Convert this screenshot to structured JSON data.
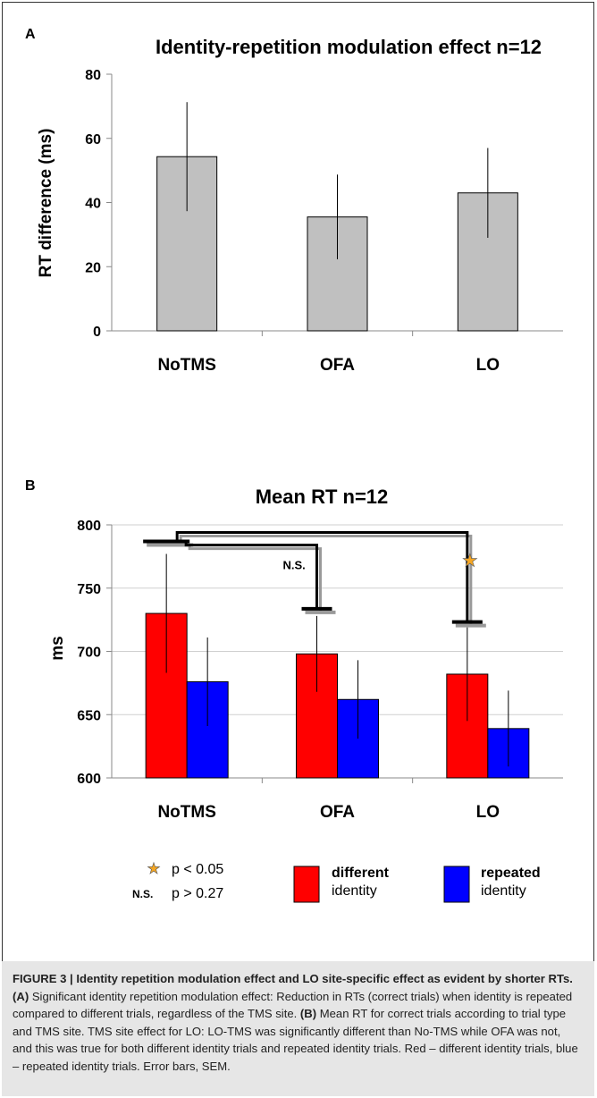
{
  "chart_data": [
    {
      "panel": "A",
      "type": "bar",
      "title": "Identity-repetition modulation effect  n=12",
      "ylabel": "RT difference (ms)",
      "xlabel": "",
      "ylim": [
        0,
        80
      ],
      "yticks": [
        0,
        20,
        40,
        60,
        80
      ],
      "grid": false,
      "categories": [
        "NoTMS",
        "OFA",
        "LO"
      ],
      "series": [
        {
          "values": [
            54.3,
            35.5,
            43.0
          ],
          "error": [
            17.0,
            13.2,
            14.0
          ],
          "color": "#c0c0c0"
        }
      ]
    },
    {
      "panel": "B",
      "type": "bar",
      "title": "Mean RT  n=12",
      "ylabel": "ms",
      "xlabel": "",
      "ylim": [
        600,
        800
      ],
      "yticks": [
        600,
        650,
        700,
        750,
        800
      ],
      "grid": true,
      "categories": [
        "NoTMS",
        "OFA",
        "LO"
      ],
      "series": [
        {
          "name": "different identity",
          "values": [
            730,
            698,
            682
          ],
          "error": [
            47,
            30,
            37
          ],
          "color": "#ff0000"
        },
        {
          "name": "repeated identity",
          "values": [
            676,
            662,
            639
          ],
          "error": [
            35,
            31,
            30
          ],
          "color": "#0000ff"
        }
      ],
      "annotations": {
        "ns_label": "N.S.",
        "star_label": "★",
        "legend_star_text": "p < 0.05",
        "legend_ns_label": "N.S.",
        "legend_ns_text": "p > 0.27",
        "legend_different_bold": "different",
        "legend_different_rest": "identity",
        "legend_repeated_bold": "repeated",
        "legend_repeated_rest": "identity"
      },
      "legend_placement": "bottom"
    }
  ],
  "caption": {
    "bold": "FIGURE 3 | Identity repetition modulation effect and LO site-specific effect as evident by shorter RTs.",
    "a_label": "(A)",
    "a_text": " Significant identity repetition modulation effect: Reduction in RTs (correct trials) when identity is repeated compared to different trials, regardless of the TMS site. ",
    "b_label": "(B)",
    "b_text": " Mean RT for correct trials according to trial type and TMS site. TMS site effect for LO: LO-TMS was significantly different than No-TMS while OFA was not, and this was true for both different identity trials and repeated identity trials. Red – different identity trials, blue – repeated identity trials. Error bars, SEM."
  },
  "panel_labels": {
    "a": "A",
    "b": "B"
  },
  "colors": {
    "bar_a": "#c0c0c0",
    "different": "#ff0000",
    "repeated": "#0000ff",
    "star": "#f5a623",
    "bracket": "#000000",
    "bracket_shadow": "#9a9a9a",
    "caption_bg": "#e6e6e6"
  }
}
